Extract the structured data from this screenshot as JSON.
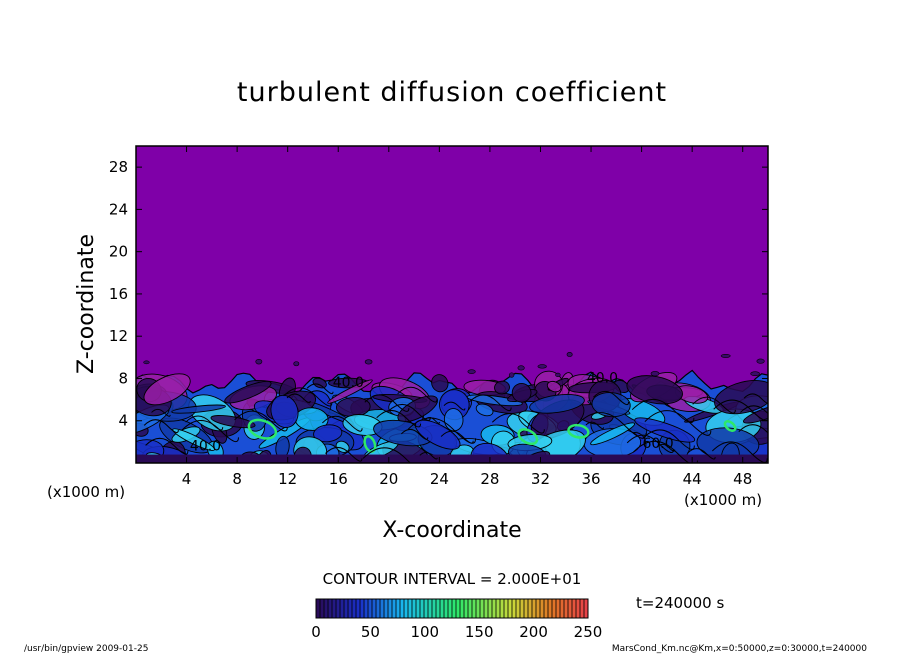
{
  "chart_data": {
    "type": "heatmap",
    "title": "turbulent diffusion coefficient",
    "xlabel": "X-coordinate",
    "ylabel": "Z-coordinate",
    "x_unit_label": "(x1000 m)",
    "y_unit_label": "(x1000 m)",
    "xlim": [
      0,
      50
    ],
    "ylim": [
      0,
      30
    ],
    "x_ticks": [
      "4",
      "8",
      "12",
      "16",
      "20",
      "24",
      "28",
      "32",
      "36",
      "40",
      "44",
      "48"
    ],
    "y_ticks": [
      "4",
      "8",
      "12",
      "16",
      "20",
      "24",
      "28"
    ],
    "contour_interval_text": "CONTOUR INTERVAL = 2.000E+01",
    "time_text": "t=240000  s",
    "contour_labels": [
      {
        "text": "40.0",
        "x": 16.8,
        "y": 7.2
      },
      {
        "text": "40.0",
        "x": 36.9,
        "y": 7.6
      },
      {
        "text": "40.0",
        "x": 5.5,
        "y": 1.2
      },
      {
        "text": "60.0",
        "x": 41.3,
        "y": 1.4
      }
    ],
    "colorbar": {
      "min": 0,
      "max": 250,
      "tick_labels": [
        "0",
        "50",
        "100",
        "150",
        "200",
        "250"
      ],
      "stops": [
        {
          "value": 0,
          "color": "#2a0a55"
        },
        {
          "value": 40,
          "color": "#1a2fc8"
        },
        {
          "value": 80,
          "color": "#19b8ef"
        },
        {
          "value": 130,
          "color": "#2ee86a"
        },
        {
          "value": 180,
          "color": "#c9d93a"
        },
        {
          "value": 215,
          "color": "#e07a25"
        },
        {
          "value": 250,
          "color": "#e8404a"
        }
      ]
    },
    "background_color": "#7f00a8",
    "turbulent_layer_top": 8
  },
  "footer": {
    "left": "/usr/bin/gpview   2009-01-25",
    "right": "MarsCond_Km.nc@Km,x=0:50000,z=0:30000,t=240000"
  }
}
